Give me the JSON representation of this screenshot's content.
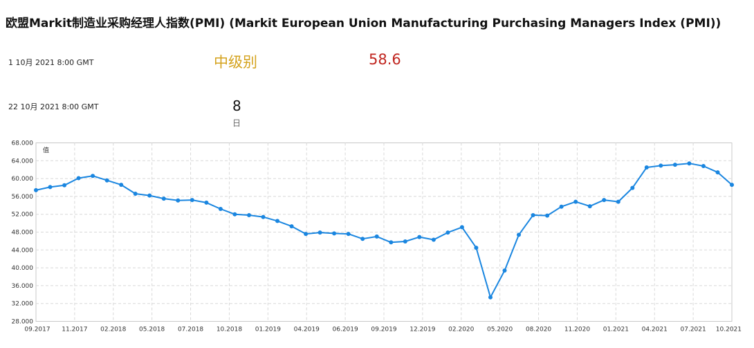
{
  "header": {
    "title": "欧盟Markit制造业采购经理人指数(PMI) (Markit European Union Manufacturing Purchasing Managers Index (PMI))"
  },
  "release": {
    "date": "1 10月 2021 8:00 GMT",
    "importance": "中级别",
    "actual": "58.6"
  },
  "next_release": {
    "date": "22 10月 2021 8:00 GMT",
    "countdown_value": "8",
    "countdown_unit": "日"
  },
  "colors": {
    "line": "#1a86e0",
    "importance": "#d4a21c",
    "actual": "#c0241e",
    "grid": "#d8d8d8"
  },
  "chart_data": {
    "type": "line",
    "ylabel": "值",
    "ylim": [
      28,
      68
    ],
    "yticks": [
      "68.000",
      "64.000",
      "60.000",
      "56.000",
      "52.000",
      "48.000",
      "44.000",
      "40.000",
      "36.000",
      "32.000",
      "28.000"
    ],
    "xticks": [
      "09.2017",
      "11.2017",
      "02.2018",
      "05.2018",
      "07.2018",
      "10.2018",
      "01.2019",
      "04.2019",
      "06.2019",
      "09.2019",
      "12.2019",
      "02.2020",
      "05.2020",
      "08.2020",
      "11.2020",
      "01.2021",
      "04.2021",
      "07.2021",
      "10.2021"
    ],
    "grid": true,
    "series": [
      {
        "values": [
          57.4,
          58.1,
          58.5,
          60.1,
          60.6,
          59.6,
          58.6,
          56.6,
          56.2,
          55.5,
          55.1,
          55.2,
          54.6,
          53.2,
          52.0,
          51.8,
          51.4,
          50.5,
          49.3,
          47.6,
          47.9,
          47.7,
          47.6,
          46.5,
          47.0,
          45.7,
          45.9,
          46.9,
          46.3,
          47.9,
          49.1,
          44.5,
          33.4,
          39.4,
          47.4,
          51.8,
          51.7,
          53.7,
          54.8,
          53.8,
          55.2,
          54.8,
          57.9,
          62.5,
          62.9,
          63.1,
          63.4,
          62.8,
          61.4,
          58.6
        ]
      }
    ]
  }
}
